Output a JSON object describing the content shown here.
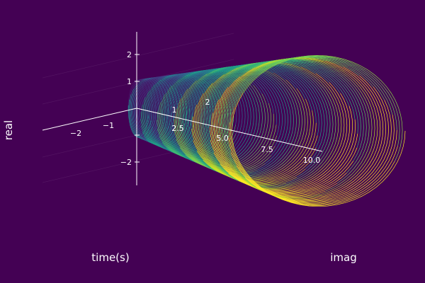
{
  "chart_data": {
    "type": "line3d",
    "title": "",
    "axis_labels": {
      "real": "real",
      "time": "time(s)",
      "imag": "imag"
    },
    "colormap": "viridis",
    "background": "#440154",
    "axis_color": "#ffffff",
    "grid": true,
    "real_axis_ticks": [
      "2",
      "1",
      "−2"
    ],
    "time_axis_ticks": [
      "2.5",
      "5.0",
      "7.5",
      "10.0"
    ],
    "imag_axis_ticks": [
      "−2",
      "−1",
      "1",
      "2"
    ],
    "curve": {
      "description_values": {
        "time_start": 0,
        "time_end": 10,
        "loops": 90,
        "amplitude_start": 0.9,
        "amplitude_end": 2.2
      }
    }
  }
}
